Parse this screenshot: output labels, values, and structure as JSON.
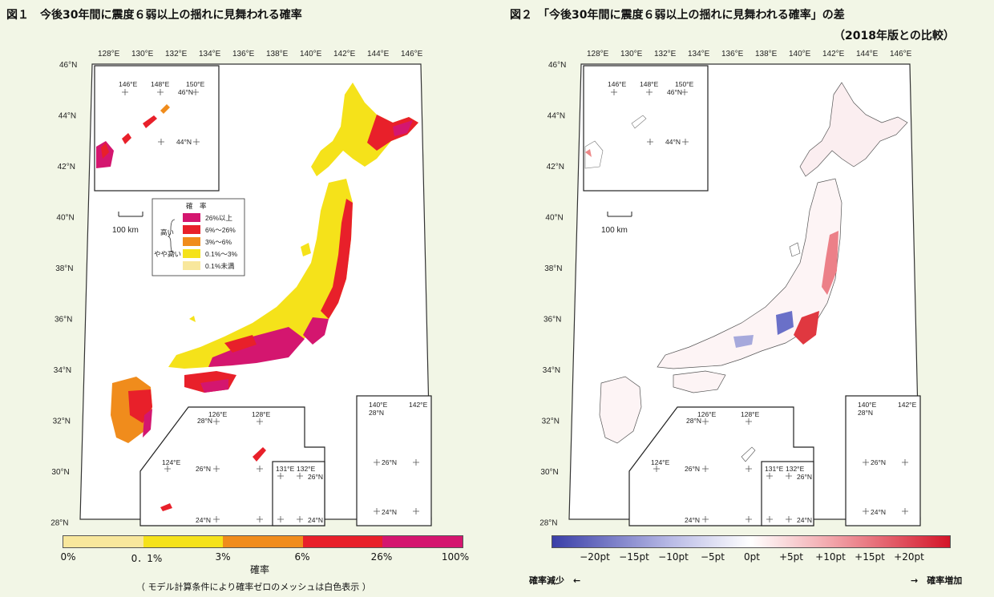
{
  "fig1": {
    "title": "図１　今後30年間に震度６弱以上の揺れに見舞われる確率",
    "lon_labels": [
      "128°E",
      "130°E",
      "132°E",
      "134°E",
      "136°E",
      "138°E",
      "140°E",
      "142°E",
      "144°E",
      "146°E"
    ],
    "lat_labels": [
      "46°N",
      "44°N",
      "42°N",
      "40°N",
      "38°N",
      "36°N",
      "34°N",
      "32°N",
      "30°N",
      "28°N"
    ],
    "inset_labels": {
      "kuril": [
        "146°E",
        "148°E",
        "150°E",
        "46°N",
        "44°N"
      ],
      "ryukyu": [
        "126°E",
        "128°E",
        "28°N",
        "124°E",
        "26°N",
        "24°N"
      ],
      "daito": [
        "131°E",
        "132°E",
        "26°N",
        "24°N"
      ],
      "ogasawara": [
        "140°E",
        "28°N",
        "142°E",
        "26°N",
        "24°N"
      ]
    },
    "scale_label": "100 km",
    "legend": {
      "title": "確　率",
      "group_high": "高い",
      "group_mid": "やや高い",
      "items": [
        {
          "label": "26%以上",
          "color": "#d4166f"
        },
        {
          "label": "6%〜26%",
          "color": "#e8202a"
        },
        {
          "label": "3%〜6%",
          "color": "#f08c1c"
        },
        {
          "label": "0.1%〜3%",
          "color": "#f5e21a"
        },
        {
          "label": "0.1%未満",
          "color": "#f8e79c"
        }
      ]
    },
    "colorbar": {
      "ticks": [
        "0%",
        "0．1%",
        "3%",
        "6%",
        "26%",
        "100%"
      ],
      "label": "確率",
      "colors": [
        "#f8e79c",
        "#f5e21a",
        "#f08c1c",
        "#e8202a",
        "#d4166f"
      ]
    },
    "note": "（ モデル計算条件により確率ゼロのメッシュは白色表示 ）"
  },
  "fig2": {
    "title": "図２　「今後30年間に震度６弱以上の揺れに見舞われる確率」の差",
    "subtitle": "（2018年版との比較）",
    "lon_labels": [
      "128°E",
      "130°E",
      "132°E",
      "134°E",
      "136°E",
      "138°E",
      "140°E",
      "142°E",
      "144°E",
      "146°E"
    ],
    "lat_labels": [
      "46°N",
      "44°N",
      "42°N",
      "40°N",
      "38°N",
      "36°N",
      "34°N",
      "32°N",
      "30°N",
      "28°N"
    ],
    "inset_labels": {
      "kuril": [
        "146°E",
        "148°E",
        "150°E",
        "46°N",
        "44°N"
      ],
      "ryukyu": [
        "126°E",
        "128°E",
        "28°N",
        "124°E",
        "26°N",
        "24°N"
      ],
      "daito": [
        "131°E",
        "132°E",
        "26°N",
        "24°N"
      ],
      "ogasawara": [
        "140°E",
        "28°N",
        "142°E",
        "26°N",
        "24°N"
      ]
    },
    "scale_label": "100 km",
    "colorbar": {
      "ticks": [
        "−20pt",
        "−15pt",
        "−10pt",
        "−5pt",
        "0pt",
        "+5pt",
        "+10pt",
        "+15pt",
        "+20pt"
      ],
      "low_color": "#3a3fa8",
      "mid_color": "#ffffff",
      "high_color": "#d41528"
    },
    "decrease_label": "確率減少　←",
    "increase_label": "→　確率増加"
  }
}
